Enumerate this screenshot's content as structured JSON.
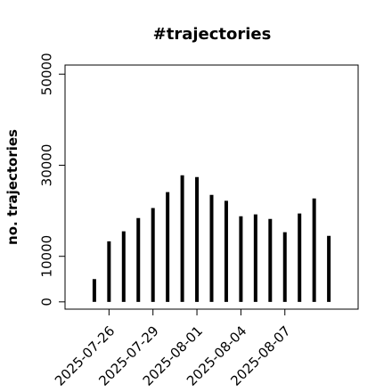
{
  "chart_data": {
    "type": "bar",
    "title": "#trajectories",
    "y_label": "no. trajectories",
    "x": [
      "2025-07-25",
      "2025-07-26",
      "2025-07-27",
      "2025-07-28",
      "2025-07-29",
      "2025-07-30",
      "2025-07-31",
      "2025-08-01",
      "2025-08-02",
      "2025-08-03",
      "2025-08-04",
      "2025-08-05",
      "2025-08-06",
      "2025-08-07",
      "2025-08-08",
      "2025-08-09",
      "2025-08-10"
    ],
    "values": [
      5000,
      13300,
      15500,
      18400,
      20600,
      24100,
      27800,
      27400,
      23500,
      22200,
      18800,
      19200,
      18200,
      15300,
      19400,
      22700,
      14500
    ],
    "color": "#000000",
    "xlim": [
      "2025-07-23",
      "2025-08-12"
    ],
    "xticks": [
      "2025-07-26",
      "2025-07-29",
      "2025-08-01",
      "2025-08-04",
      "2025-08-07"
    ],
    "ylim": [
      -1600,
      52000
    ],
    "yticks": [
      0,
      10000,
      30000,
      50000
    ]
  }
}
